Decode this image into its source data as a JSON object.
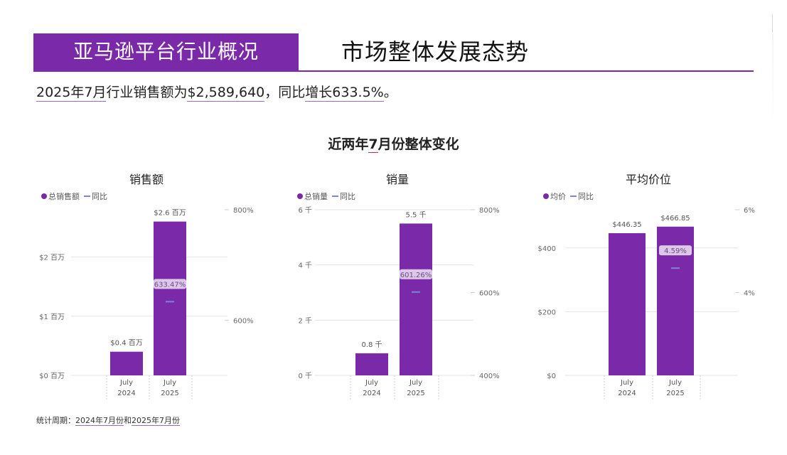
{
  "header": {
    "left_title": "亚马逊平台行业概况",
    "right_title": "市场整体发展态势"
  },
  "summary": {
    "period": "2025年7月",
    "text1": "行业销售额为",
    "sales": "$2,589,640",
    "text2": "，同比",
    "growth_label": "增长633.5%",
    "text3": "。"
  },
  "section": {
    "title_a": "近两年",
    "title_u": "7",
    "title_b": "月份整体变化"
  },
  "colors": {
    "bar": "#7a2aa8",
    "yoy_line": "#7b84d6",
    "grid": "#e3e3e3"
  },
  "charts": [
    {
      "title": "销售额",
      "legend_bar": "总销售额",
      "legend_line": "同比"
    },
    {
      "title": "销量",
      "legend_bar": "总销量",
      "legend_line": "同比"
    },
    {
      "title": "平均价位",
      "legend_bar": "均价",
      "legend_line": "同比"
    }
  ],
  "footer": {
    "prefix": "统计周期：",
    "start": "2024年7月份",
    "mid": "和",
    "end": "2025年7月份"
  },
  "chart_data": [
    {
      "type": "bar",
      "title": "销售额",
      "categories": [
        "July 2024",
        "July 2025"
      ],
      "category_lines": [
        [
          "July",
          "2024"
        ],
        [
          "July",
          "2025"
        ]
      ],
      "series": [
        {
          "name": "总销售额",
          "type": "bar",
          "values": [
            0.4,
            2.6
          ],
          "value_labels": [
            "$0.4 百万",
            "$2.6 百万"
          ]
        },
        {
          "name": "同比",
          "type": "line",
          "axis": "right",
          "values": [
            null,
            633.47
          ],
          "value_labels": [
            null,
            "633.47%"
          ]
        }
      ],
      "y_left": {
        "min": 0,
        "max": 2.8,
        "ticks": [
          0,
          1,
          2
        ],
        "tick_labels": [
          "$0 百万",
          "$1 百万",
          "$2 百万"
        ]
      },
      "y_right": {
        "min": 500,
        "max": 800,
        "ticks": [
          600,
          800
        ],
        "tick_labels": [
          "600%",
          "800%"
        ]
      },
      "grid": true,
      "legend": "top-left"
    },
    {
      "type": "bar",
      "title": "销量",
      "categories": [
        "July 2024",
        "July 2025"
      ],
      "category_lines": [
        [
          "July",
          "2024"
        ],
        [
          "July",
          "2025"
        ]
      ],
      "series": [
        {
          "name": "总销量",
          "type": "bar",
          "values": [
            0.8,
            5.5
          ],
          "value_labels": [
            "0.8 千",
            "5.5 千"
          ]
        },
        {
          "name": "同比",
          "type": "line",
          "axis": "right",
          "values": [
            null,
            601.26
          ],
          "value_labels": [
            null,
            "601.26%"
          ]
        }
      ],
      "y_left": {
        "min": 0,
        "max": 6,
        "ticks": [
          0,
          2,
          4,
          6
        ],
        "tick_labels": [
          "0 千",
          "2 千",
          "4 千",
          "6 千"
        ]
      },
      "y_right": {
        "min": 400,
        "max": 800,
        "ticks": [
          400,
          600,
          800
        ],
        "tick_labels": [
          "400%",
          "600%",
          "800%"
        ]
      },
      "grid": true,
      "legend": "top-left"
    },
    {
      "type": "bar",
      "title": "平均价位",
      "categories": [
        "July 2024",
        "July 2025"
      ],
      "category_lines": [
        [
          "July",
          "2024"
        ],
        [
          "July",
          "2025"
        ]
      ],
      "series": [
        {
          "name": "均价",
          "type": "bar",
          "values": [
            446.35,
            466.85
          ],
          "value_labels": [
            "$446.35",
            "$466.85"
          ]
        },
        {
          "name": "同比",
          "type": "line",
          "axis": "right",
          "values": [
            null,
            4.59
          ],
          "value_labels": [
            null,
            "4.59%"
          ]
        }
      ],
      "y_left": {
        "min": 0,
        "max": 520,
        "ticks": [
          0,
          200,
          400
        ],
        "tick_labels": [
          "$0",
          "$200",
          "$400"
        ]
      },
      "y_right": {
        "min": 2.0,
        "max": 6.0,
        "ticks": [
          4,
          6
        ],
        "tick_labels": [
          "4%",
          "6%"
        ]
      },
      "grid": true,
      "legend": "top-left"
    }
  ]
}
